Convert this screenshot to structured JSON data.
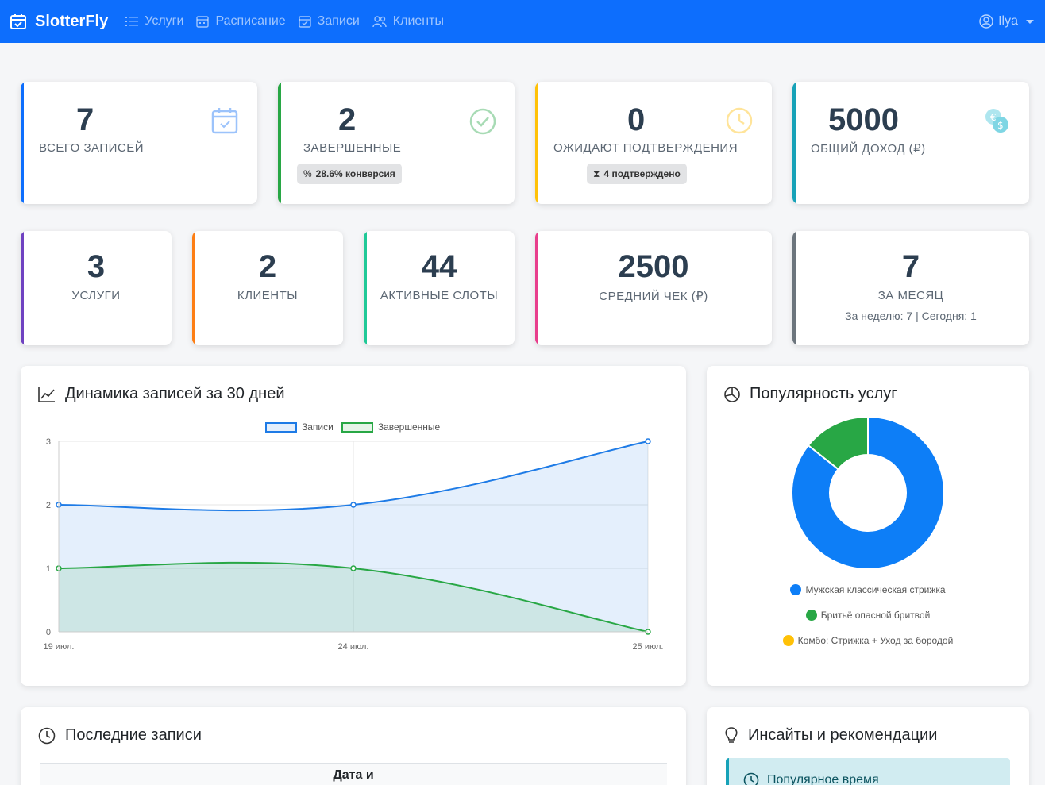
{
  "nav": {
    "brand": "SlotterFly",
    "items": [
      {
        "label": "Услуги",
        "icon": "list-icon"
      },
      {
        "label": "Расписание",
        "icon": "calendar-week-icon"
      },
      {
        "label": "Записи",
        "icon": "calendar-check-icon"
      },
      {
        "label": "Клиенты",
        "icon": "people-icon"
      }
    ],
    "user": "Ilya"
  },
  "stats_top": [
    {
      "value": "7",
      "label": "ВСЕГО ЗАПИСЕЙ",
      "icon": "calendar-check-icon",
      "accent": "#0d6efd"
    },
    {
      "value": "2",
      "label": "ЗАВЕРШЕННЫЕ",
      "icon": "check-circle-icon",
      "accent": "#28a745",
      "badge": "28.6% конверсия",
      "badge_glyph": "%"
    },
    {
      "value": "0",
      "label": "ОЖИДАЮТ ПОДТВЕРЖДЕНИЯ",
      "icon": "clock-icon",
      "accent": "#ffc107",
      "badge": "4 подтверждено",
      "badge_glyph": "⧗"
    },
    {
      "value": "5000",
      "label": "ОБЩИЙ ДОХОД (₽)",
      "icon": "coins-icon",
      "accent": "#17a2b8"
    }
  ],
  "stats_bottom": [
    {
      "value": "3",
      "label": "УСЛУГИ",
      "accent": "#6f42c1"
    },
    {
      "value": "2",
      "label": "КЛИЕНТЫ",
      "accent": "#fd7e14"
    },
    {
      "value": "44",
      "label": "АКТИВНЫЕ СЛОТЫ",
      "accent": "#20c997"
    },
    {
      "value": "2500",
      "label": "СРЕДНИЙ ЧЕК (₽)",
      "accent": "#e83e8c"
    },
    {
      "value": "7",
      "label": "ЗА МЕСЯЦ",
      "accent": "#6c757d",
      "sub": "За неделю: 7 | Сегодня: 1"
    }
  ],
  "trend_panel": {
    "title": "Динамика записей за 30 дней",
    "icon": "line-chart-icon"
  },
  "pie_panel": {
    "title": "Популярность услуг",
    "icon": "pie-chart-icon"
  },
  "recent_panel": {
    "title": "Последние записи",
    "icon": "clock-icon",
    "table_header": "Дата и"
  },
  "insights_panel": {
    "title": "Инсайты и рекомендации",
    "icon": "lightbulb-icon",
    "first_insight": "Популярное время"
  },
  "chart_data": [
    {
      "type": "line",
      "categories": [
        "19 июл.",
        "24 июл.",
        "25 июл."
      ],
      "series": [
        {
          "name": "Записи",
          "values": [
            2,
            2,
            3
          ],
          "color": "#1e7be6",
          "fill": "rgba(30,123,230,0.12)"
        },
        {
          "name": "Завершенные",
          "values": [
            1,
            1,
            0
          ],
          "color": "#28a745",
          "fill": "rgba(40,167,69,0.12)"
        }
      ],
      "ylim": [
        0,
        3
      ],
      "yticks": [
        0,
        1,
        2,
        3
      ],
      "legend": "top",
      "grid": true
    },
    {
      "type": "pie",
      "labels": [
        "Мужская классическая стрижка",
        "Бритьё опасной бритвой",
        "Комбо: Стрижка + Уход за бородой"
      ],
      "values": [
        6,
        1,
        0
      ],
      "colors": [
        "#0d7ef7",
        "#28a745",
        "#ffc107"
      ],
      "legend": "bottom"
    }
  ]
}
